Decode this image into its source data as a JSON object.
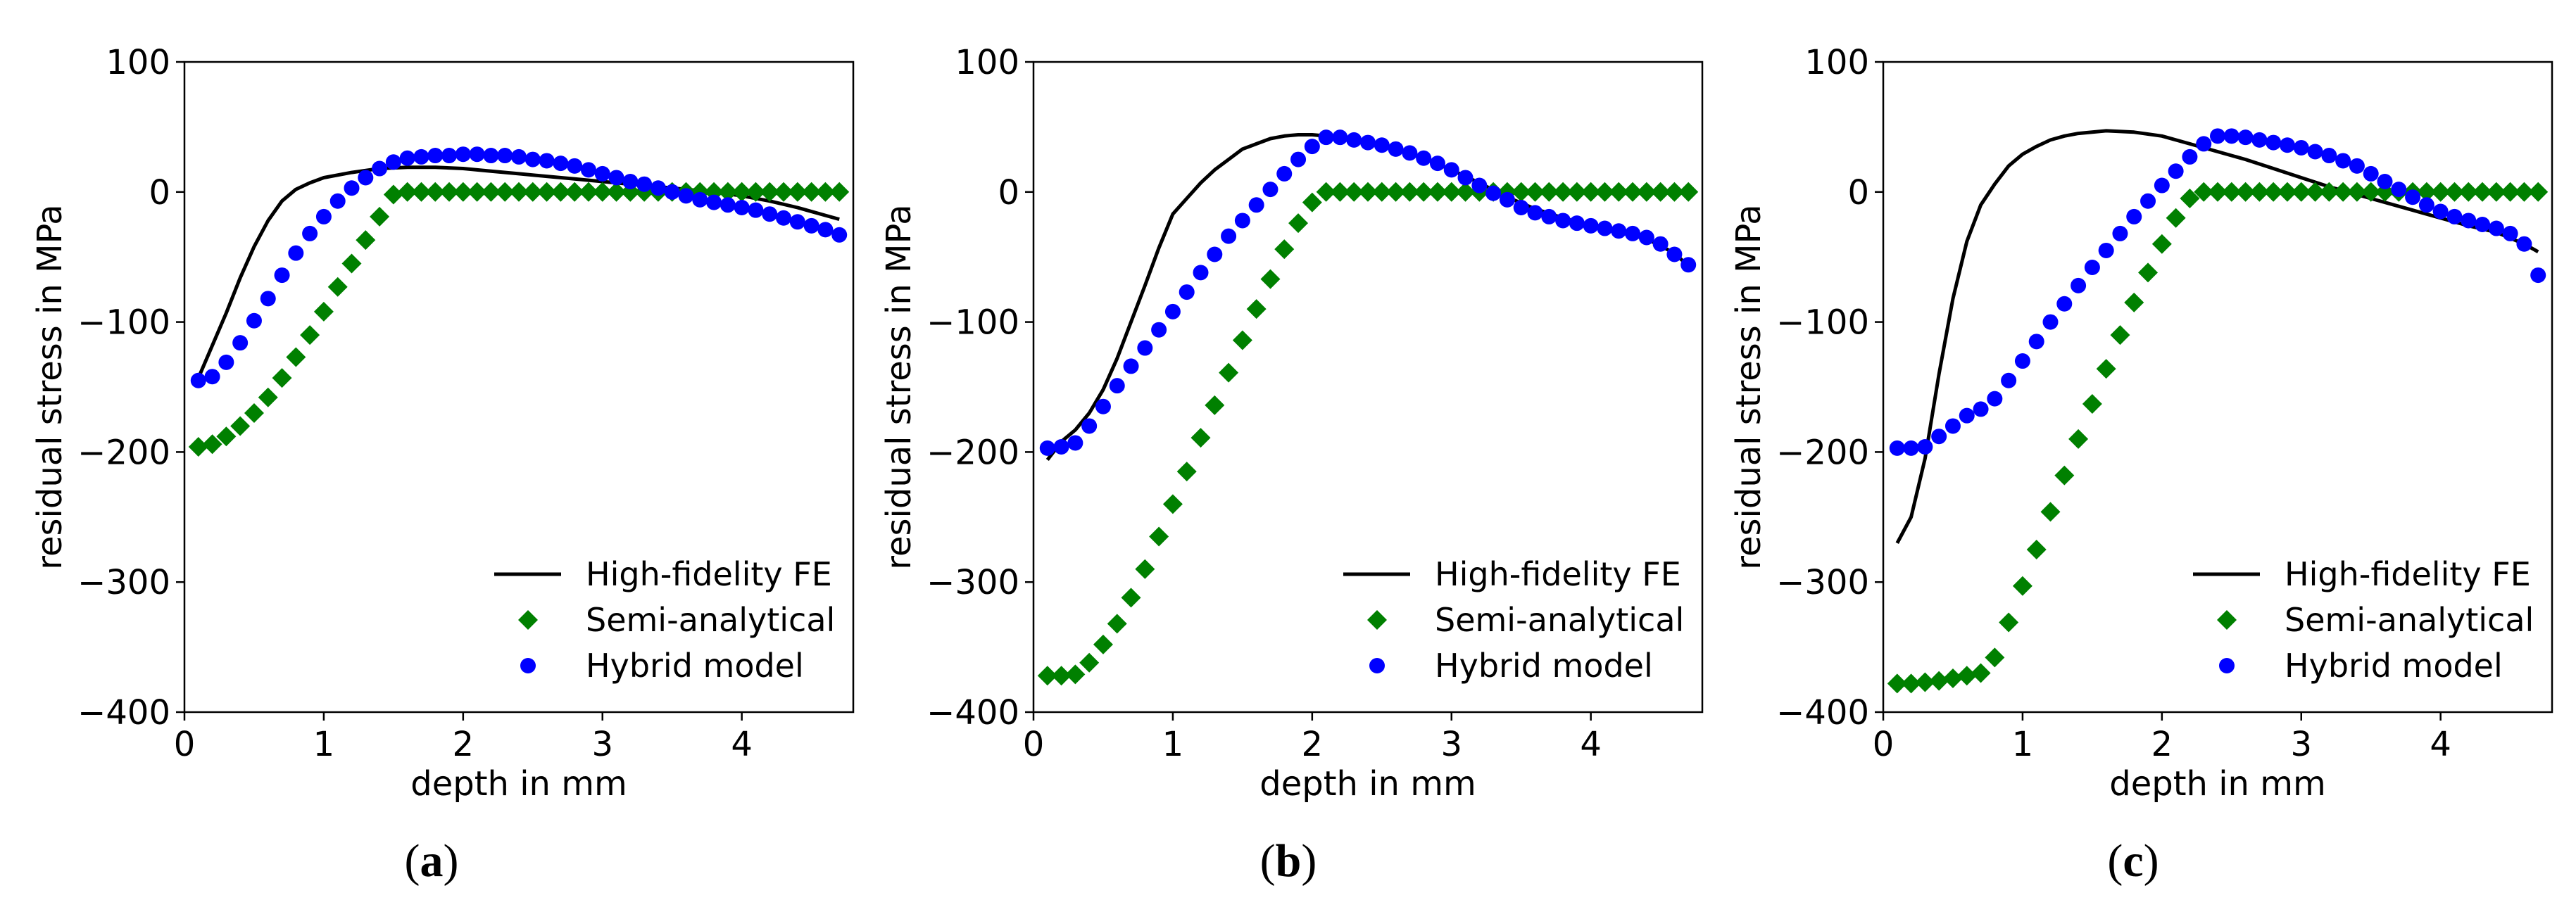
{
  "colors": {
    "fe": "#000000",
    "semi": "#008000",
    "hybrid": "#0000ff",
    "axis": "#000000"
  },
  "legend_labels": [
    "High-fidelity FE",
    "Semi-analytical",
    "Hybrid model"
  ],
  "chart_data": [
    {
      "type": "line",
      "panel": "a",
      "caption_open": "(",
      "caption_letter": "a",
      "caption_close": ")",
      "xlabel": "depth in mm",
      "ylabel": "residual stress in MPa",
      "xlim": [
        0,
        4.8
      ],
      "ylim": [
        -400,
        100
      ],
      "xticks": [
        0,
        1,
        2,
        3,
        4
      ],
      "yticks": [
        100,
        0,
        -100,
        -200,
        -300,
        -400
      ],
      "ytick_labels": [
        "100",
        "0",
        "−100",
        "−200",
        "−300",
        "−400"
      ],
      "series": [
        {
          "name": "High-fidelity FE",
          "style": "line",
          "x": [
            0.1,
            0.2,
            0.3,
            0.4,
            0.5,
            0.6,
            0.7,
            0.8,
            0.9,
            1.0,
            1.2,
            1.4,
            1.6,
            1.8,
            2.0,
            2.2,
            2.4,
            2.6,
            2.8,
            3.0,
            3.2,
            3.4,
            3.6,
            3.8,
            4.0,
            4.2,
            4.4,
            4.6,
            4.7
          ],
          "y": [
            -143,
            -118,
            -93,
            -66,
            -42,
            -22,
            -7,
            2,
            7,
            11,
            15,
            18,
            19,
            19,
            18,
            16,
            14,
            12,
            10,
            8,
            6,
            4,
            2,
            0,
            -3,
            -7,
            -12,
            -18,
            -21
          ]
        },
        {
          "name": "Semi-analytical",
          "style": "diamond",
          "x": [
            0.1,
            0.2,
            0.3,
            0.4,
            0.5,
            0.6,
            0.7,
            0.8,
            0.9,
            1.0,
            1.1,
            1.2,
            1.3,
            1.4,
            1.5,
            1.6,
            1.7,
            1.8,
            1.9,
            2.0,
            2.1,
            2.2,
            2.3,
            2.4,
            2.5,
            2.6,
            2.7,
            2.8,
            2.9,
            3.0,
            3.1,
            3.2,
            3.3,
            3.4,
            3.5,
            3.6,
            3.7,
            3.8,
            3.9,
            4.0,
            4.1,
            4.2,
            4.3,
            4.4,
            4.5,
            4.6,
            4.7
          ],
          "y": [
            -196,
            -194,
            -188,
            -180,
            -170,
            -158,
            -143,
            -127,
            -110,
            -92,
            -73,
            -55,
            -37,
            -19,
            -2,
            0,
            0,
            0,
            0,
            0,
            0,
            0,
            0,
            0,
            0,
            0,
            0,
            0,
            0,
            0,
            0,
            0,
            0,
            0,
            0,
            0,
            0,
            0,
            0,
            0,
            0,
            0,
            0,
            0,
            0,
            0,
            0
          ]
        },
        {
          "name": "Hybrid model",
          "style": "circle",
          "x": [
            0.1,
            0.2,
            0.3,
            0.4,
            0.5,
            0.6,
            0.7,
            0.8,
            0.9,
            1.0,
            1.1,
            1.2,
            1.3,
            1.4,
            1.5,
            1.6,
            1.7,
            1.8,
            1.9,
            2.0,
            2.1,
            2.2,
            2.3,
            2.4,
            2.5,
            2.6,
            2.7,
            2.8,
            2.9,
            3.0,
            3.1,
            3.2,
            3.3,
            3.4,
            3.5,
            3.6,
            3.7,
            3.8,
            3.9,
            4.0,
            4.1,
            4.2,
            4.3,
            4.4,
            4.5,
            4.6,
            4.7
          ],
          "y": [
            -145,
            -142,
            -131,
            -116,
            -99,
            -82,
            -64,
            -47,
            -32,
            -19,
            -7,
            3,
            11,
            18,
            23,
            26,
            27,
            28,
            28,
            29,
            29,
            28,
            28,
            27,
            25,
            24,
            22,
            20,
            17,
            14,
            11,
            8,
            6,
            3,
            0,
            -3,
            -6,
            -8,
            -10,
            -12,
            -14,
            -17,
            -20,
            -23,
            -26,
            -29,
            -33
          ]
        }
      ]
    },
    {
      "type": "line",
      "panel": "b",
      "caption_open": "(",
      "caption_letter": "b",
      "caption_close": ")",
      "xlabel": "depth in mm",
      "ylabel": "residual stress in MPa",
      "xlim": [
        0,
        4.8
      ],
      "ylim": [
        -400,
        100
      ],
      "xticks": [
        0,
        1,
        2,
        3,
        4
      ],
      "yticks": [
        100,
        0,
        -100,
        -200,
        -300,
        -400
      ],
      "ytick_labels": [
        "100",
        "0",
        "−100",
        "−200",
        "−300",
        "−400"
      ],
      "series": [
        {
          "name": "High-fidelity FE",
          "style": "line",
          "x": [
            0.1,
            0.2,
            0.3,
            0.4,
            0.5,
            0.6,
            0.7,
            0.8,
            0.9,
            1.0,
            1.1,
            1.2,
            1.3,
            1.4,
            1.5,
            1.6,
            1.7,
            1.8,
            1.9,
            2.0,
            2.1,
            2.2,
            2.4,
            2.6,
            2.8,
            3.0,
            3.2,
            3.4,
            3.6,
            3.8,
            4.0,
            4.2,
            4.4,
            4.6,
            4.7
          ],
          "y": [
            -206,
            -192,
            -183,
            -170,
            -152,
            -128,
            -100,
            -72,
            -43,
            -17,
            -5,
            7,
            17,
            25,
            33,
            37,
            41,
            43,
            44,
            44,
            43,
            42,
            38,
            33,
            26,
            17,
            7,
            -4,
            -13,
            -20,
            -26,
            -31,
            -36,
            -47,
            -57
          ]
        },
        {
          "name": "Semi-analytical",
          "style": "diamond",
          "x": [
            0.1,
            0.2,
            0.3,
            0.4,
            0.5,
            0.6,
            0.7,
            0.8,
            0.9,
            1.0,
            1.1,
            1.2,
            1.3,
            1.4,
            1.5,
            1.6,
            1.7,
            1.8,
            1.9,
            2.0,
            2.1,
            2.2,
            2.3,
            2.4,
            2.5,
            2.6,
            2.7,
            2.8,
            2.9,
            3.0,
            3.1,
            3.2,
            3.3,
            3.4,
            3.5,
            3.6,
            3.7,
            3.8,
            3.9,
            4.0,
            4.1,
            4.2,
            4.3,
            4.4,
            4.5,
            4.6,
            4.7
          ],
          "y": [
            -372,
            -372,
            -371,
            -362,
            -348,
            -332,
            -312,
            -290,
            -265,
            -240,
            -215,
            -189,
            -164,
            -139,
            -114,
            -90,
            -67,
            -44,
            -24,
            -8,
            0,
            0,
            0,
            0,
            0,
            0,
            0,
            0,
            0,
            0,
            0,
            0,
            0,
            0,
            0,
            0,
            0,
            0,
            0,
            0,
            0,
            0,
            0,
            0,
            0,
            0,
            0
          ]
        },
        {
          "name": "Hybrid model",
          "style": "circle",
          "x": [
            0.1,
            0.2,
            0.3,
            0.4,
            0.5,
            0.6,
            0.7,
            0.8,
            0.9,
            1.0,
            1.1,
            1.2,
            1.3,
            1.4,
            1.5,
            1.6,
            1.7,
            1.8,
            1.9,
            2.0,
            2.1,
            2.2,
            2.3,
            2.4,
            2.5,
            2.6,
            2.7,
            2.8,
            2.9,
            3.0,
            3.1,
            3.2,
            3.3,
            3.4,
            3.5,
            3.6,
            3.7,
            3.8,
            3.9,
            4.0,
            4.1,
            4.2,
            4.3,
            4.4,
            4.5,
            4.6,
            4.7
          ],
          "y": [
            -197,
            -196,
            -193,
            -180,
            -165,
            -149,
            -134,
            -120,
            -106,
            -92,
            -77,
            -62,
            -48,
            -34,
            -22,
            -10,
            2,
            14,
            25,
            35,
            42,
            42,
            40,
            38,
            36,
            33,
            30,
            26,
            22,
            17,
            11,
            5,
            -1,
            -6,
            -12,
            -16,
            -19,
            -22,
            -24,
            -26,
            -28,
            -30,
            -32,
            -35,
            -40,
            -48,
            -56
          ]
        }
      ]
    },
    {
      "type": "line",
      "panel": "c",
      "caption_open": "(",
      "caption_letter": "c",
      "caption_close": ")",
      "xlabel": "depth in mm",
      "ylabel": "residual stress in MPa",
      "xlim": [
        0,
        4.8
      ],
      "ylim": [
        -400,
        100
      ],
      "xticks": [
        0,
        1,
        2,
        3,
        4
      ],
      "yticks": [
        100,
        0,
        -100,
        -200,
        -300,
        -400
      ],
      "ytick_labels": [
        "100",
        "0",
        "−100",
        "−200",
        "−300",
        "−400"
      ],
      "series": [
        {
          "name": "High-fidelity FE",
          "style": "line",
          "x": [
            0.1,
            0.2,
            0.3,
            0.4,
            0.5,
            0.6,
            0.7,
            0.8,
            0.9,
            1.0,
            1.1,
            1.2,
            1.3,
            1.4,
            1.6,
            1.8,
            2.0,
            2.2,
            2.4,
            2.6,
            2.8,
            3.0,
            3.2,
            3.4,
            3.6,
            3.8,
            4.0,
            4.2,
            4.4,
            4.6,
            4.7
          ],
          "y": [
            -270,
            -250,
            -205,
            -140,
            -82,
            -38,
            -10,
            6,
            20,
            29,
            35,
            40,
            43,
            45,
            47,
            46,
            43,
            37,
            31,
            25,
            18,
            11,
            4,
            -2,
            -8,
            -14,
            -20,
            -26,
            -31,
            -40,
            -46
          ]
        },
        {
          "name": "Semi-analytical",
          "style": "diamond",
          "x": [
            0.1,
            0.2,
            0.3,
            0.4,
            0.5,
            0.6,
            0.7,
            0.8,
            0.9,
            1.0,
            1.1,
            1.2,
            1.3,
            1.4,
            1.5,
            1.6,
            1.7,
            1.8,
            1.9,
            2.0,
            2.1,
            2.2,
            2.3,
            2.4,
            2.5,
            2.6,
            2.7,
            2.8,
            2.9,
            3.0,
            3.1,
            3.2,
            3.3,
            3.4,
            3.5,
            3.6,
            3.7,
            3.8,
            3.9,
            4.0,
            4.1,
            4.2,
            4.3,
            4.4,
            4.5,
            4.6,
            4.7
          ],
          "y": [
            -378,
            -378,
            -377,
            -376,
            -374,
            -372,
            -370,
            -358,
            -331,
            -303,
            -275,
            -246,
            -218,
            -190,
            -163,
            -136,
            -110,
            -85,
            -62,
            -40,
            -20,
            -5,
            0,
            0,
            0,
            0,
            0,
            0,
            0,
            0,
            0,
            0,
            0,
            0,
            0,
            0,
            0,
            0,
            0,
            0,
            0,
            0,
            0,
            0,
            0,
            0,
            0
          ]
        },
        {
          "name": "Hybrid model",
          "style": "circle",
          "x": [
            0.1,
            0.2,
            0.3,
            0.4,
            0.5,
            0.6,
            0.7,
            0.8,
            0.9,
            1.0,
            1.1,
            1.2,
            1.3,
            1.4,
            1.5,
            1.6,
            1.7,
            1.8,
            1.9,
            2.0,
            2.1,
            2.2,
            2.3,
            2.4,
            2.5,
            2.6,
            2.7,
            2.8,
            2.9,
            3.0,
            3.1,
            3.2,
            3.3,
            3.4,
            3.5,
            3.6,
            3.7,
            3.8,
            3.9,
            4.0,
            4.1,
            4.2,
            4.3,
            4.4,
            4.5,
            4.6,
            4.7
          ],
          "y": [
            -197,
            -197,
            -196,
            -188,
            -180,
            -172,
            -167,
            -159,
            -145,
            -130,
            -115,
            -100,
            -86,
            -72,
            -58,
            -45,
            -32,
            -19,
            -7,
            5,
            16,
            27,
            37,
            43,
            43,
            42,
            40,
            38,
            36,
            34,
            31,
            28,
            24,
            20,
            14,
            8,
            2,
            -4,
            -10,
            -15,
            -19,
            -22,
            -25,
            -28,
            -32,
            -40,
            -64
          ]
        }
      ]
    }
  ]
}
